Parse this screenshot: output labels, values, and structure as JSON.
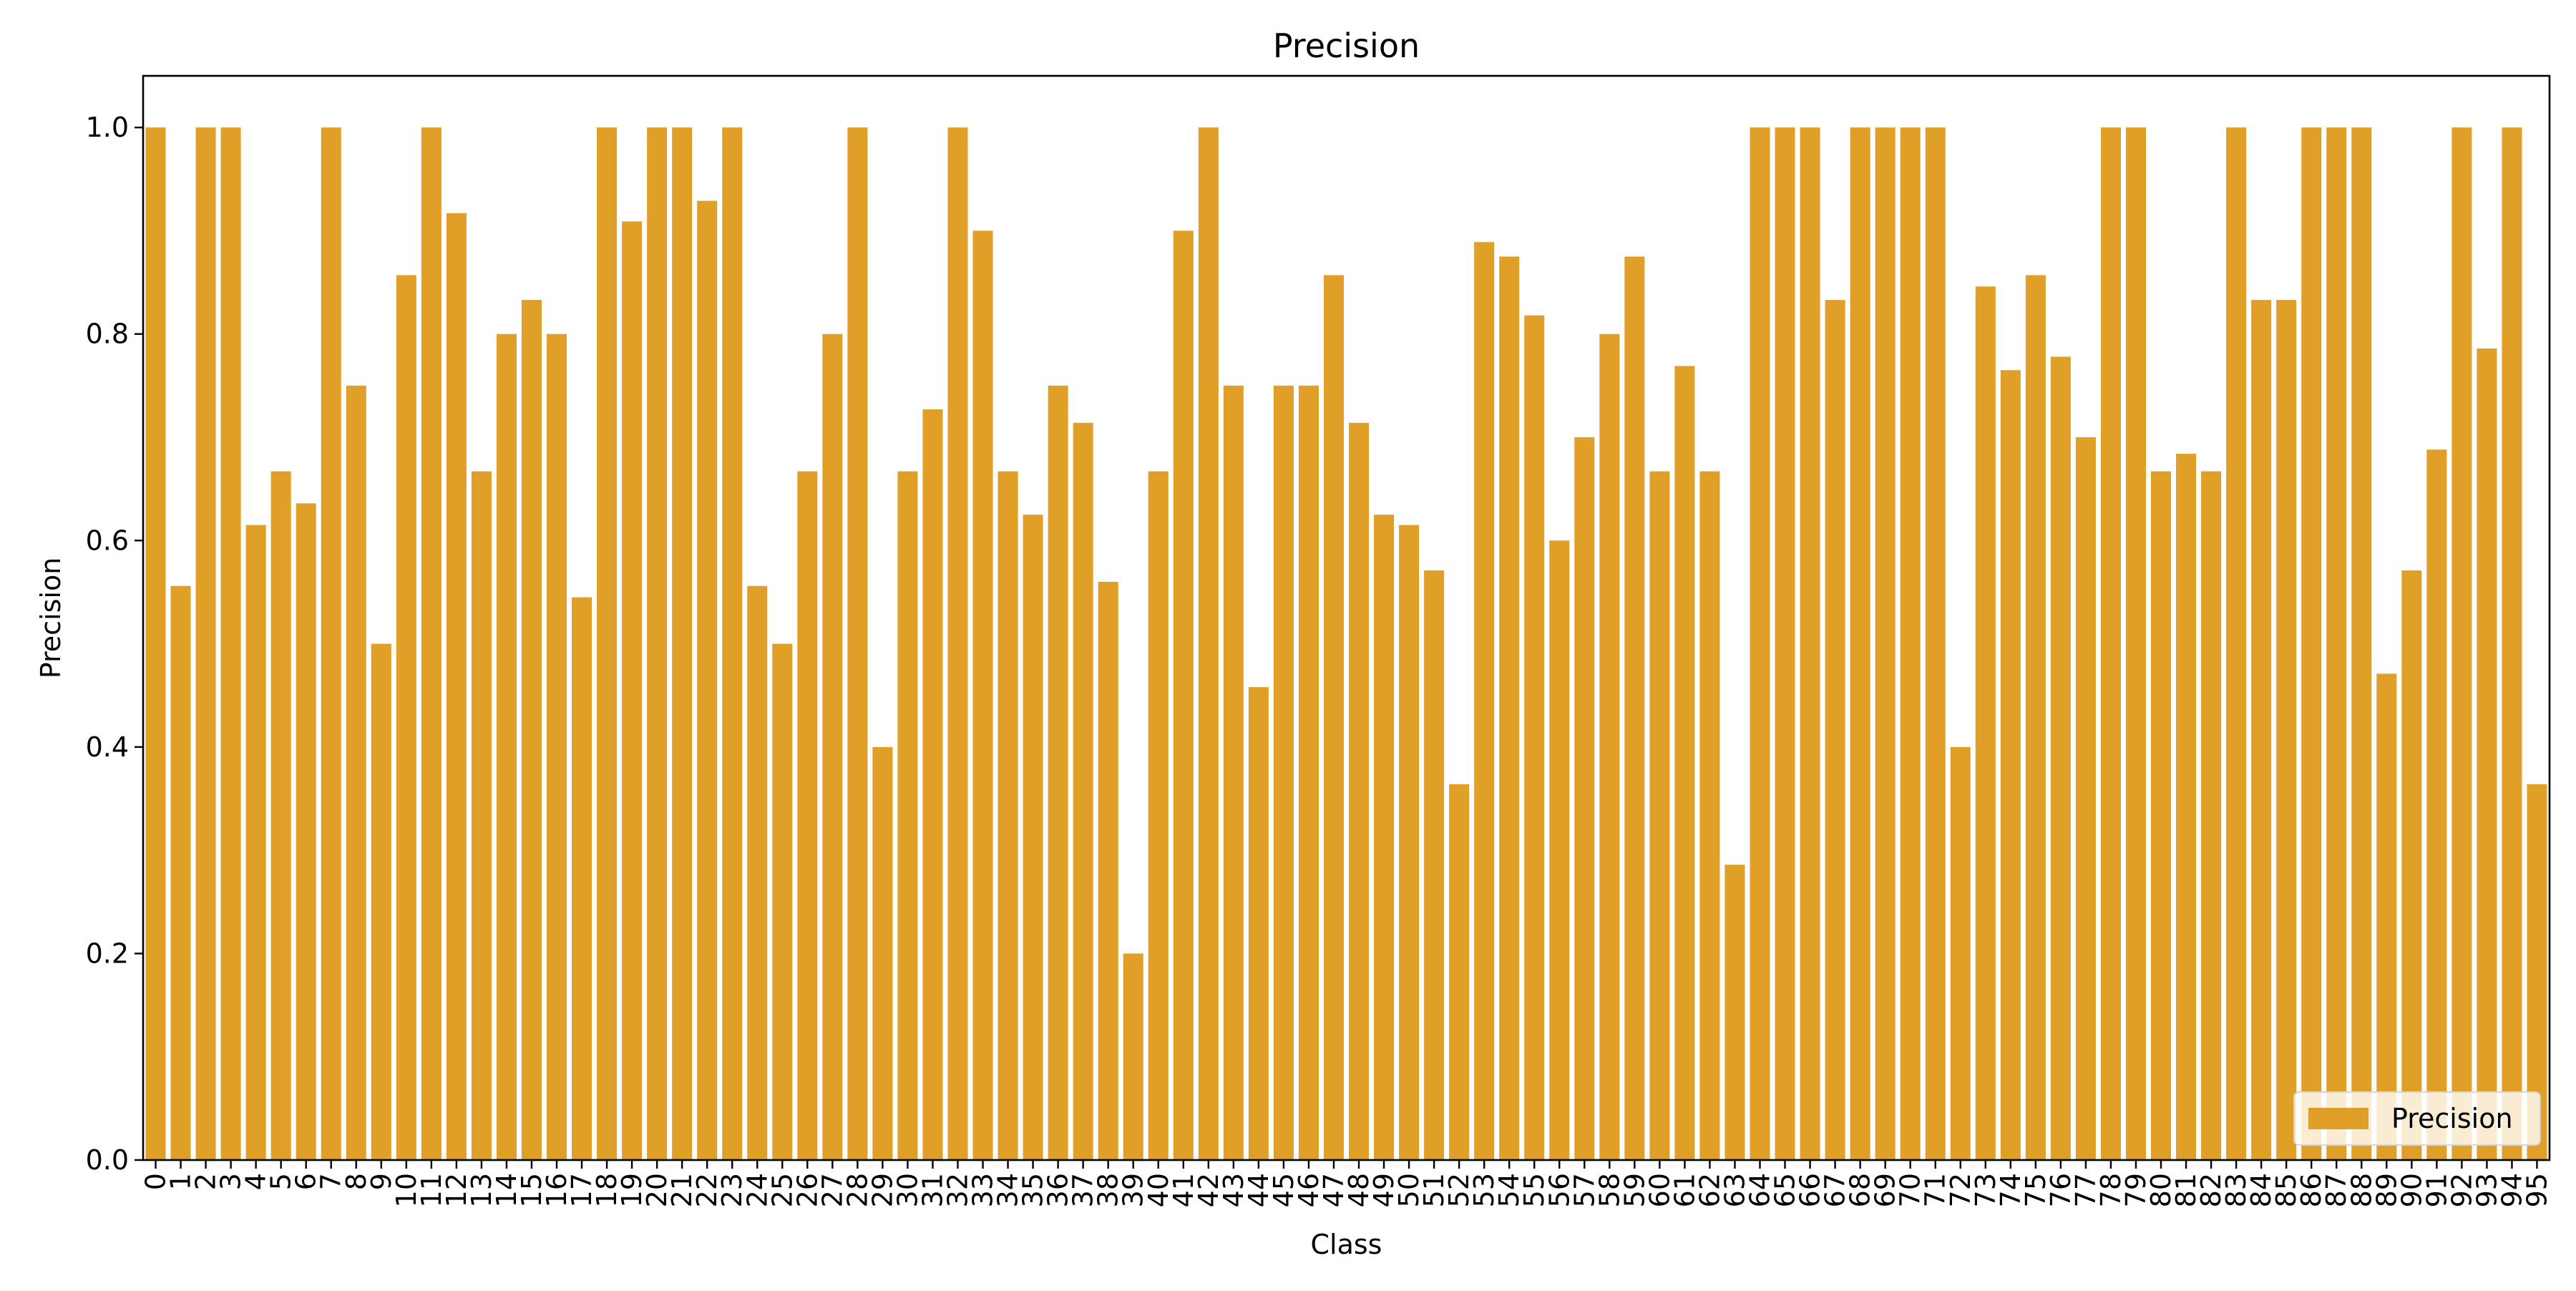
{
  "chart_data": {
    "type": "bar",
    "title": "Precision",
    "xlabel": "Class",
    "ylabel": "Precision",
    "ylim": [
      0,
      1.05
    ],
    "yticks": [
      0.0,
      0.2,
      0.4,
      0.6,
      0.8,
      1.0
    ],
    "ytick_labels": [
      "0.0",
      "0.2",
      "0.4",
      "0.6",
      "0.8",
      "1.0"
    ],
    "grid": false,
    "legend": {
      "position": "lower-right"
    },
    "categories": [
      "0",
      "1",
      "2",
      "3",
      "4",
      "5",
      "6",
      "7",
      "8",
      "9",
      "10",
      "11",
      "12",
      "13",
      "14",
      "15",
      "16",
      "17",
      "18",
      "19",
      "20",
      "21",
      "22",
      "23",
      "24",
      "25",
      "26",
      "27",
      "28",
      "29",
      "30",
      "31",
      "32",
      "33",
      "34",
      "35",
      "36",
      "37",
      "38",
      "39",
      "40",
      "41",
      "42",
      "43",
      "44",
      "45",
      "46",
      "47",
      "48",
      "49",
      "50",
      "51",
      "52",
      "53",
      "54",
      "55",
      "56",
      "57",
      "58",
      "59",
      "60",
      "61",
      "62",
      "63",
      "64",
      "65",
      "66",
      "67",
      "68",
      "69",
      "70",
      "71",
      "72",
      "73",
      "74",
      "75",
      "76",
      "77",
      "78",
      "79",
      "80",
      "81",
      "82",
      "83",
      "84",
      "85",
      "86",
      "87",
      "88",
      "89",
      "90",
      "91",
      "92",
      "93",
      "94",
      "95"
    ],
    "series": [
      {
        "name": "Precision",
        "color": "#e09f26",
        "values": [
          1.0,
          0.556,
          1.0,
          1.0,
          0.615,
          0.667,
          0.636,
          1.0,
          0.75,
          0.5,
          0.857,
          1.0,
          0.917,
          0.667,
          0.8,
          0.833,
          0.8,
          0.545,
          1.0,
          0.909,
          1.0,
          1.0,
          0.929,
          1.0,
          0.556,
          0.5,
          0.667,
          0.8,
          1.0,
          0.4,
          0.667,
          0.727,
          1.0,
          0.9,
          0.667,
          0.625,
          0.75,
          0.714,
          0.56,
          0.2,
          0.667,
          0.9,
          1.0,
          0.75,
          0.458,
          0.75,
          0.75,
          0.857,
          0.714,
          0.625,
          0.615,
          0.571,
          0.364,
          0.889,
          0.875,
          0.818,
          0.6,
          0.7,
          0.8,
          0.875,
          0.667,
          0.769,
          0.667,
          0.286,
          1.0,
          1.0,
          1.0,
          0.833,
          1.0,
          1.0,
          1.0,
          1.0,
          0.4,
          0.846,
          0.765,
          0.857,
          0.778,
          0.7,
          1.0,
          1.0,
          0.667,
          0.684,
          0.667,
          1.0,
          0.833,
          0.833,
          1.0,
          1.0,
          1.0,
          0.471,
          0.571,
          0.688,
          1.0,
          0.786,
          1.0,
          0.364
        ]
      }
    ]
  }
}
